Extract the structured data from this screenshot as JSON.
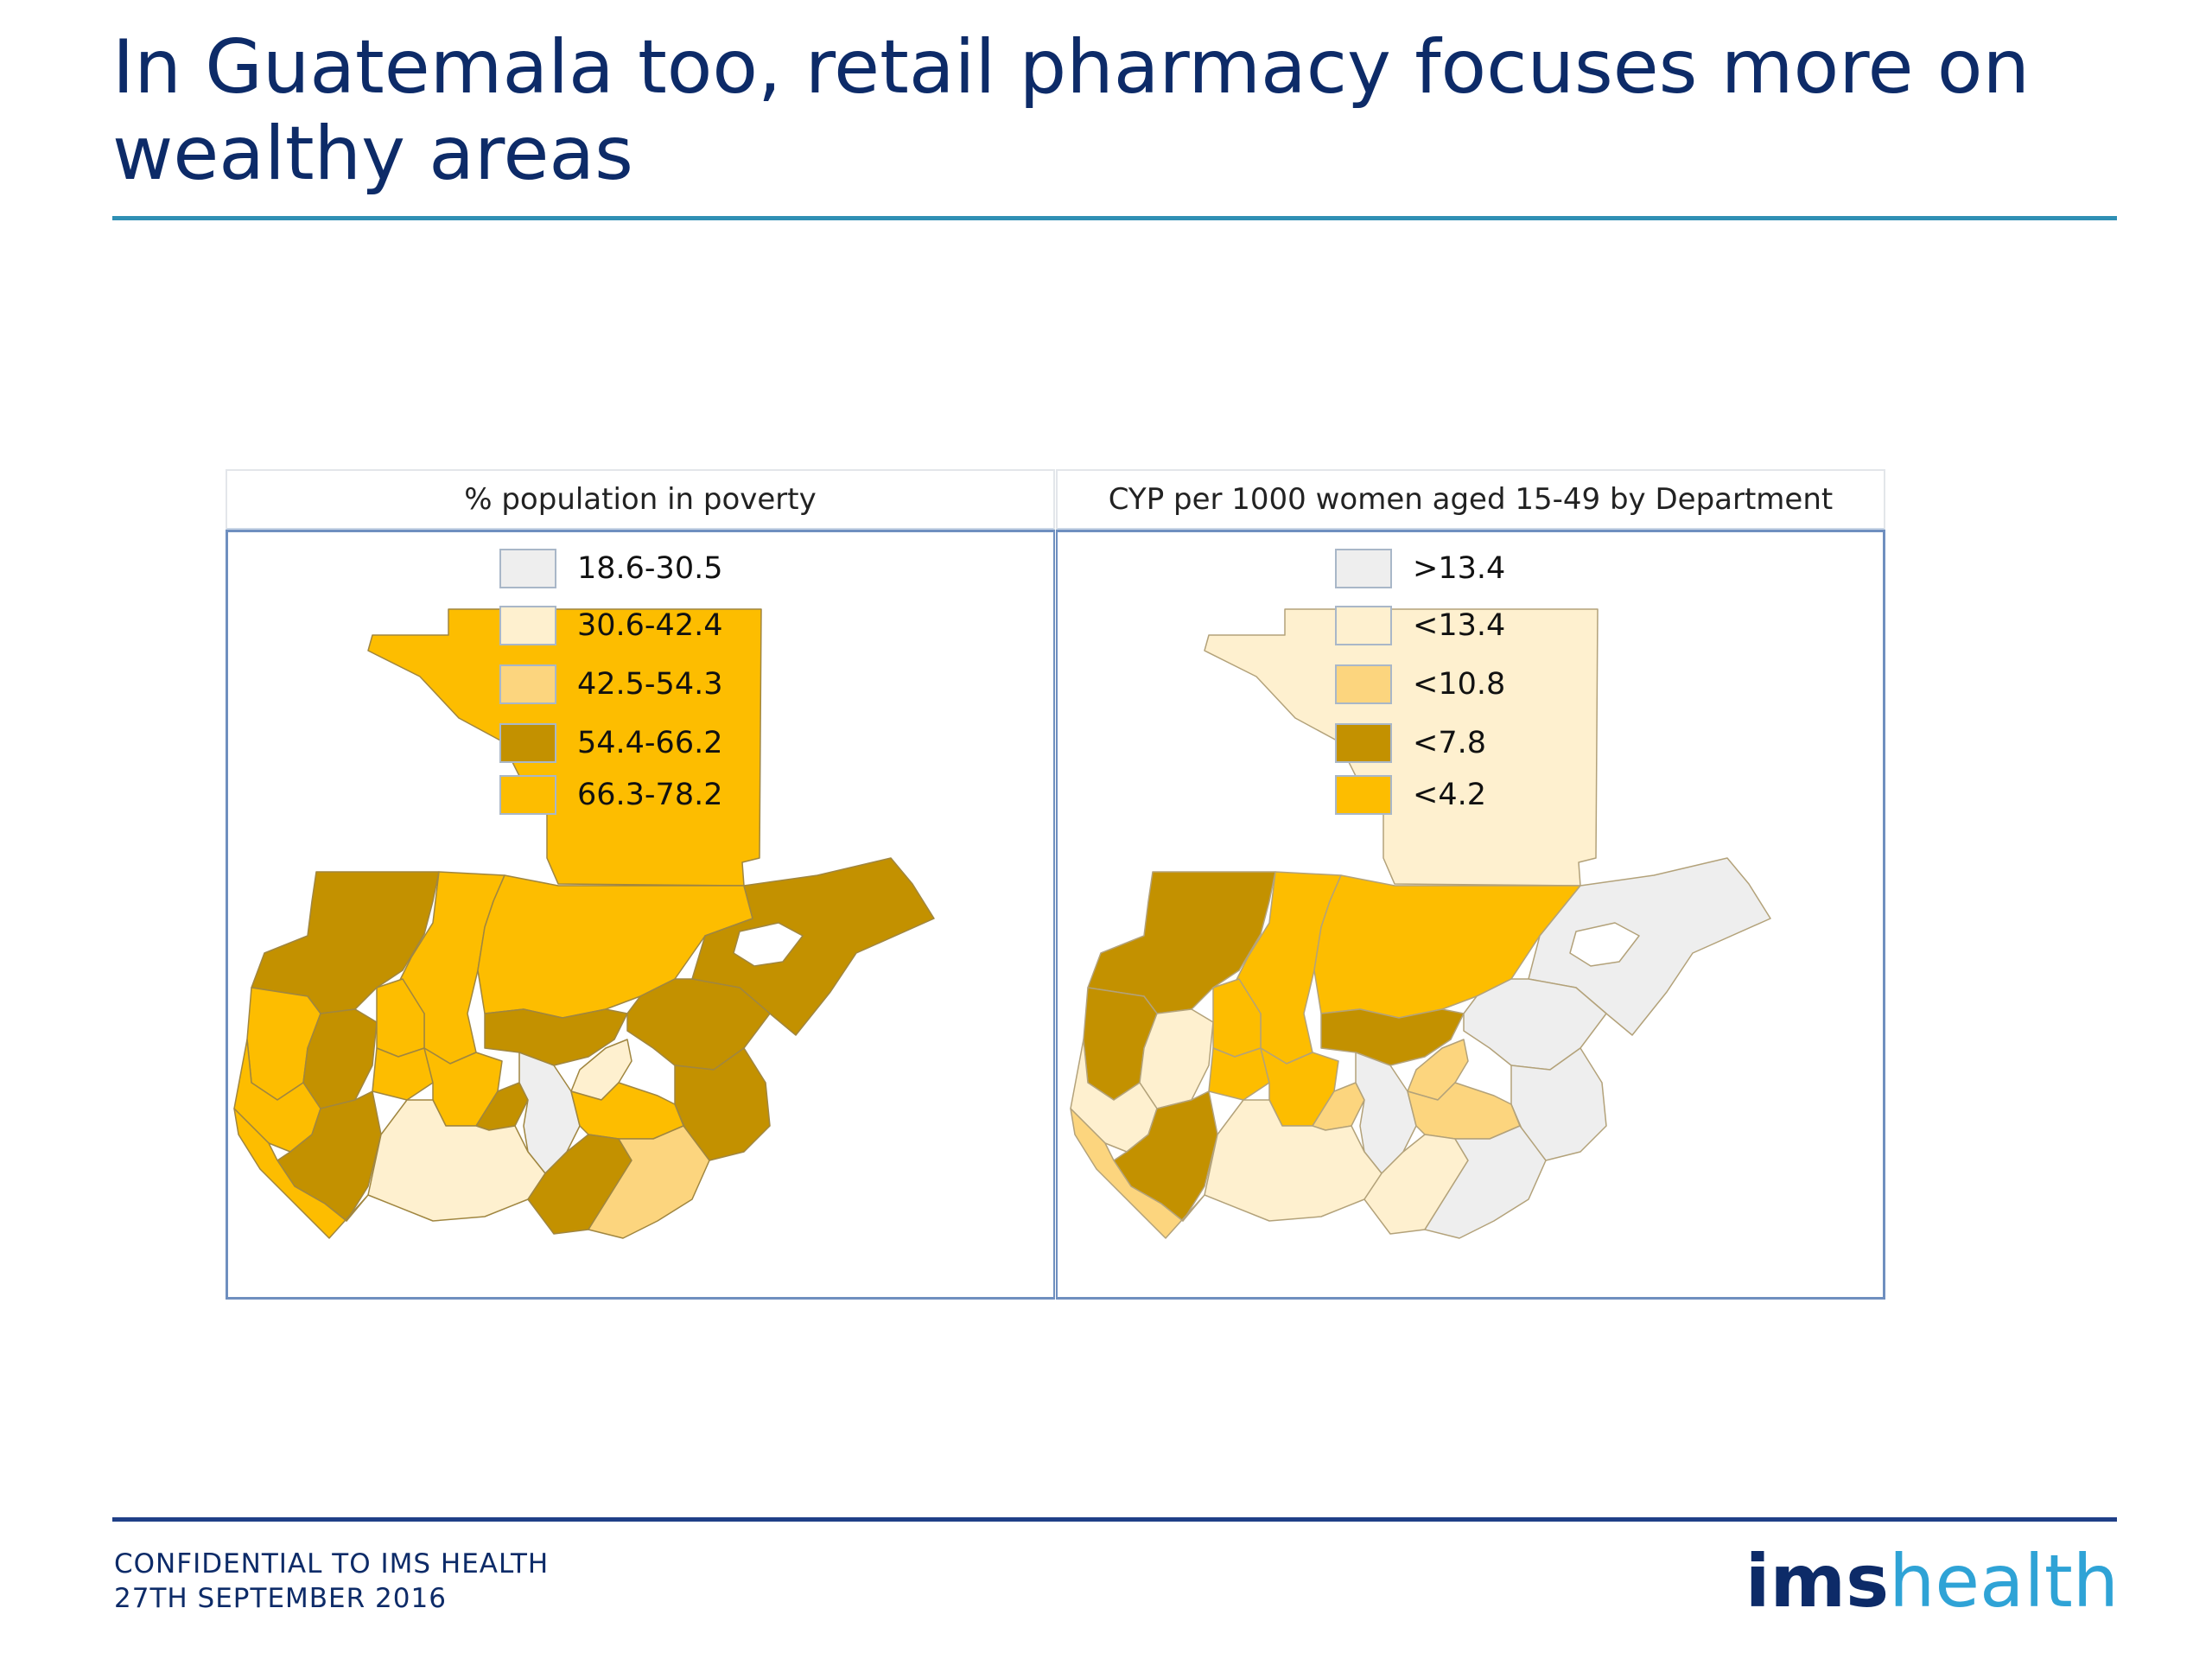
{
  "title": "In Guatemala too, retail pharmacy focuses more on wealthy areas",
  "colors": {
    "class1": "#eeeeee",
    "class2": "#fef0cf",
    "class3": "#fcd57e",
    "class4": "#c39100",
    "class5": "#fdbd00",
    "title": "#0d2b68",
    "rule_top": "#2f8fb4",
    "logo_health": "#2fa3d6"
  },
  "maps": [
    {
      "title": "% population in poverty",
      "legend": [
        {
          "label": "18.6-30.5",
          "color": "#eeeeee"
        },
        {
          "label": "30.6-42.4",
          "color": "#fef0cf"
        },
        {
          "label": "42.5-54.3",
          "color": "#fcd57e"
        },
        {
          "label": "54.4-66.2",
          "color": "#c39100"
        },
        {
          "label": "66.3-78.2",
          "color": "#fdbd00"
        }
      ]
    },
    {
      "title": "CYP per 1000 women aged 15-49 by Department",
      "legend": [
        {
          "label": ">13.4",
          "color": "#eeeeee"
        },
        {
          "label": "<13.4",
          "color": "#fef0cf"
        },
        {
          "label": "<10.8",
          "color": "#fcd57e"
        },
        {
          "label": "<7.8",
          "color": "#c39100"
        },
        {
          "label": "<4.2",
          "color": "#fdbd00"
        }
      ]
    }
  ],
  "footer": {
    "line1": "CONFIDENTIAL TO IMS HEALTH",
    "line2": "27TH SEPTEMBER 2016"
  },
  "logo": {
    "part1": "ims",
    "part2": "health"
  }
}
